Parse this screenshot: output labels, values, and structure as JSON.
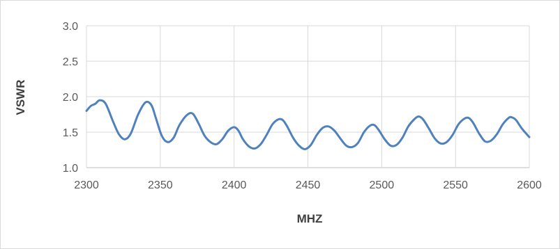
{
  "chart_data": {
    "type": "line",
    "title": "",
    "xlabel": "MHZ",
    "ylabel": "VSWR",
    "xlim": [
      2300,
      2600
    ],
    "ylim": [
      1.0,
      3.0
    ],
    "x_ticks": [
      2300,
      2350,
      2400,
      2450,
      2500,
      2550,
      2600
    ],
    "x_tick_labels": [
      "2300",
      "2350",
      "2400",
      "2450",
      "2500",
      "2550",
      "2600"
    ],
    "y_ticks": [
      1.0,
      1.5,
      2.0,
      2.5,
      3.0
    ],
    "y_tick_labels": [
      "1.0",
      "1.5",
      "2.0",
      "2.5",
      "3.0"
    ],
    "grid": true,
    "legend": "none",
    "series": [
      {
        "color": "#4f81bd",
        "x": [
          2300,
          2303,
          2306,
          2309,
          2313,
          2318,
          2322,
          2326,
          2330,
          2335,
          2340,
          2344,
          2347,
          2351,
          2355,
          2359,
          2363,
          2368,
          2372,
          2376,
          2380,
          2384,
          2388,
          2392,
          2396,
          2400,
          2403,
          2406,
          2410,
          2414,
          2418,
          2422,
          2426,
          2430,
          2433,
          2436,
          2440,
          2444,
          2448,
          2452,
          2456,
          2460,
          2464,
          2468,
          2472,
          2476,
          2480,
          2484,
          2488,
          2492,
          2495,
          2498,
          2502,
          2506,
          2510,
          2514,
          2518,
          2522,
          2525,
          2528,
          2532,
          2536,
          2540,
          2544,
          2548,
          2552,
          2556,
          2559,
          2562,
          2566,
          2570,
          2574,
          2578,
          2582,
          2586,
          2588,
          2591,
          2595,
          2600
        ],
        "y": [
          1.8,
          1.87,
          1.9,
          1.95,
          1.9,
          1.65,
          1.47,
          1.4,
          1.48,
          1.75,
          1.92,
          1.88,
          1.7,
          1.45,
          1.36,
          1.42,
          1.6,
          1.74,
          1.76,
          1.62,
          1.45,
          1.36,
          1.33,
          1.4,
          1.52,
          1.57,
          1.52,
          1.4,
          1.3,
          1.27,
          1.33,
          1.46,
          1.61,
          1.68,
          1.67,
          1.58,
          1.42,
          1.31,
          1.26,
          1.32,
          1.46,
          1.56,
          1.58,
          1.52,
          1.41,
          1.31,
          1.29,
          1.35,
          1.5,
          1.59,
          1.6,
          1.53,
          1.4,
          1.31,
          1.32,
          1.42,
          1.58,
          1.68,
          1.72,
          1.68,
          1.55,
          1.41,
          1.34,
          1.36,
          1.46,
          1.61,
          1.69,
          1.7,
          1.63,
          1.48,
          1.37,
          1.38,
          1.47,
          1.61,
          1.7,
          1.71,
          1.67,
          1.55,
          1.43
        ]
      }
    ]
  }
}
